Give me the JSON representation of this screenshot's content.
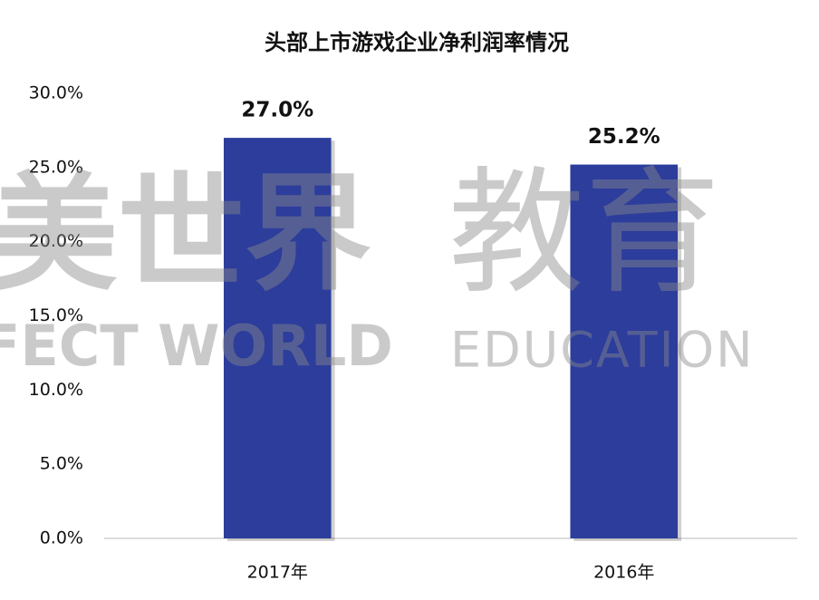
{
  "chart_data": {
    "type": "bar",
    "title": "头部上市游戏企业净利润率情况",
    "categories": [
      "2017年",
      "2016年"
    ],
    "values": [
      27.0,
      25.2
    ],
    "value_labels": [
      "27.0%",
      "25.2%"
    ],
    "color": "#2c3d9c",
    "ylim": [
      0,
      30
    ],
    "yticks": [
      {
        "value": 0,
        "label": "0.0%"
      },
      {
        "value": 5,
        "label": "5.0%"
      },
      {
        "value": 10,
        "label": "10.0%"
      },
      {
        "value": 15,
        "label": "15.0%"
      },
      {
        "value": 20,
        "label": "20.0%"
      },
      {
        "value": 25,
        "label": "25.0%"
      },
      {
        "value": 30,
        "label": "30.0%"
      }
    ],
    "grid": false,
    "watermark": [
      "美世界",
      "教育",
      "FECT WORLD",
      "EDUCATION"
    ]
  }
}
